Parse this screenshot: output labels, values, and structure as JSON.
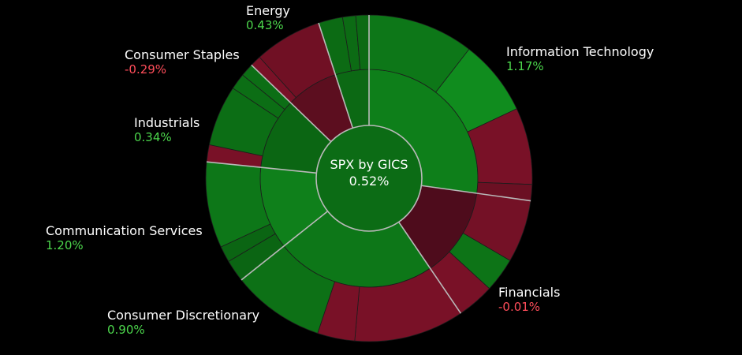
{
  "colors": {
    "background": "#000000",
    "positive_text": "#4cd64c",
    "negative_text": "#ff4d5a",
    "separator": "#b9b9b9"
  },
  "chart_data": {
    "type": "sunburst",
    "center": {
      "title": "SPX by GICS",
      "value": "0.52%",
      "change": 0.52
    },
    "sectors": [
      {
        "name": "Information Technology",
        "change_label": "1.17%",
        "change": 1.17,
        "weight": 27.2,
        "children": [
          {
            "weight": 10.5,
            "change": 0.9
          },
          {
            "weight": 7.5,
            "change": 1.6
          },
          {
            "weight": 7.6,
            "change": -0.9
          },
          {
            "weight": 1.6,
            "change": -0.6
          }
        ]
      },
      {
        "name": "Financials",
        "change_label": "-0.01%",
        "change": -0.01,
        "weight": 13.3,
        "children": [
          {
            "weight": 6.2,
            "change": -0.8
          },
          {
            "weight": 3.4,
            "change": 0.8
          },
          {
            "weight": 3.7,
            "change": -0.9
          }
        ]
      },
      {
        "name": "Consumer Discretionary",
        "change_label": "0.90%",
        "change": 0.9,
        "weight": 23.8,
        "children": [
          {
            "weight": 10.9,
            "change": -0.9
          },
          {
            "weight": 3.7,
            "change": -0.9
          },
          {
            "weight": 9.2,
            "change": 0.7
          }
        ]
      },
      {
        "name": "Communication Services",
        "change_label": "1.20%",
        "change": 1.2,
        "weight": 12.3,
        "children": [
          {
            "weight": 2.2,
            "change": 0.3
          },
          {
            "weight": 1.6,
            "change": 0.3
          },
          {
            "weight": 8.5,
            "change": 0.9
          }
        ]
      },
      {
        "name": "Industrials",
        "change_label": "0.34%",
        "change": 0.34,
        "weight": 10.6,
        "children": [
          {
            "weight": 1.7,
            "change": -0.9
          },
          {
            "weight": 6.0,
            "change": 0.6
          },
          {
            "weight": 1.6,
            "change": 0.6
          },
          {
            "weight": 1.3,
            "change": 0.6
          }
        ]
      },
      {
        "name": "Consumer Staples",
        "change_label": "-0.29%",
        "change": -0.29,
        "weight": 7.8,
        "children": [
          {
            "weight": 1.1,
            "change": -0.9
          },
          {
            "weight": 6.7,
            "change": -0.7
          }
        ]
      },
      {
        "name": "Energy",
        "change_label": "0.43%",
        "change": 0.43,
        "weight": 5.0,
        "children": [
          {
            "weight": 2.4,
            "change": 0.5
          },
          {
            "weight": 1.3,
            "change": 0.5
          },
          {
            "weight": 1.3,
            "change": 0.5
          }
        ]
      }
    ]
  }
}
